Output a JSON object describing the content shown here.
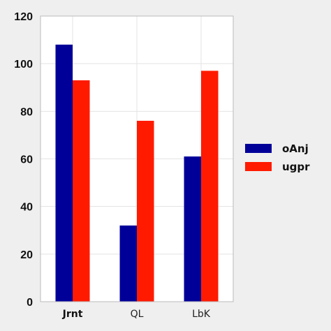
{
  "chart_data": {
    "type": "bar",
    "categories": [
      "Jrnt",
      "QL",
      "LbK"
    ],
    "series": [
      {
        "name": "oAnj",
        "values": [
          108,
          32,
          61
        ],
        "color": "#000099"
      },
      {
        "name": "ugpr",
        "values": [
          93,
          76,
          97
        ],
        "color": "#ff1a00"
      }
    ],
    "ylim": [
      0,
      120
    ],
    "yticks": [
      0,
      20,
      40,
      60,
      80,
      100,
      120
    ],
    "grid": true,
    "legend_position": "right",
    "plot_background": "#ffffff",
    "page_background": "#efefef"
  }
}
